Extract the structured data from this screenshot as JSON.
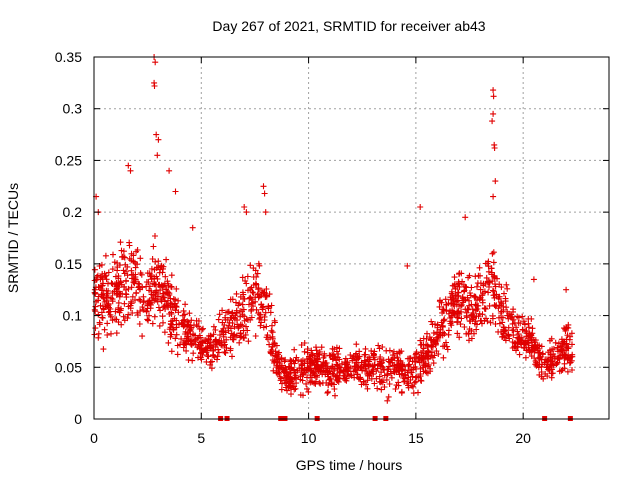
{
  "chart_data": {
    "type": "scatter",
    "title": "Day 267 of 2021, SRMTID for receiver ab43",
    "xlabel": "GPS time / hours",
    "ylabel": "SRMTID / TECUs",
    "xlim": [
      0,
      24
    ],
    "ylim": [
      0,
      0.35
    ],
    "xticks": [
      0,
      5,
      10,
      15,
      20
    ],
    "yticks": [
      0,
      0.05,
      0.1,
      0.15,
      0.2,
      0.25,
      0.3,
      0.35
    ],
    "xtick_labels": [
      "0",
      "5",
      "10",
      "15",
      "20"
    ],
    "ytick_labels": [
      "0",
      "0.05",
      "0.1",
      "0.15",
      "0.2",
      "0.25",
      "0.3",
      "0.35"
    ],
    "grid": true,
    "marker": "+",
    "color": "#e00000",
    "zero_markers_x": [
      5.9,
      6.2,
      8.7,
      8.8,
      8.9,
      10.4,
      13.1,
      13.6,
      21.0,
      22.2
    ],
    "series": [
      {
        "name": "SRMTID",
        "envelope_x": [
          0,
          0.5,
          1,
          1.5,
          2,
          2.5,
          3,
          3.5,
          4,
          4.5,
          5,
          5.5,
          6,
          6.5,
          7,
          7.5,
          8,
          8.5,
          9,
          9.5,
          10,
          10.5,
          11,
          11.5,
          12,
          12.5,
          13,
          13.5,
          14,
          14.5,
          15,
          15.5,
          16,
          16.5,
          17,
          17.5,
          18,
          18.5,
          19,
          19.5,
          20,
          20.5,
          21,
          21.5,
          22,
          22.3
        ],
        "envelope_mean": [
          0.11,
          0.12,
          0.12,
          0.14,
          0.13,
          0.12,
          0.13,
          0.11,
          0.09,
          0.08,
          0.075,
          0.07,
          0.08,
          0.09,
          0.11,
          0.12,
          0.11,
          0.06,
          0.04,
          0.045,
          0.05,
          0.05,
          0.045,
          0.05,
          0.05,
          0.05,
          0.05,
          0.05,
          0.05,
          0.045,
          0.05,
          0.06,
          0.08,
          0.1,
          0.12,
          0.11,
          0.11,
          0.13,
          0.1,
          0.09,
          0.08,
          0.07,
          0.05,
          0.06,
          0.07,
          0.06
        ],
        "envelope_spread": [
          0.05,
          0.05,
          0.05,
          0.06,
          0.05,
          0.05,
          0.05,
          0.05,
          0.035,
          0.03,
          0.025,
          0.025,
          0.03,
          0.035,
          0.045,
          0.045,
          0.045,
          0.03,
          0.02,
          0.025,
          0.03,
          0.025,
          0.025,
          0.025,
          0.025,
          0.025,
          0.025,
          0.03,
          0.025,
          0.025,
          0.03,
          0.03,
          0.035,
          0.04,
          0.045,
          0.045,
          0.04,
          0.05,
          0.035,
          0.03,
          0.03,
          0.025,
          0.025,
          0.025,
          0.03,
          0.025
        ],
        "peaks": [
          {
            "x": 0.1,
            "y": 0.215
          },
          {
            "x": 0.2,
            "y": 0.2
          },
          {
            "x": 1.6,
            "y": 0.245
          },
          {
            "x": 1.7,
            "y": 0.24
          },
          {
            "x": 2.8,
            "y": 0.35
          },
          {
            "x": 2.85,
            "y": 0.345
          },
          {
            "x": 2.8,
            "y": 0.325
          },
          {
            "x": 2.82,
            "y": 0.322
          },
          {
            "x": 2.9,
            "y": 0.275
          },
          {
            "x": 3.0,
            "y": 0.27
          },
          {
            "x": 2.95,
            "y": 0.255
          },
          {
            "x": 3.5,
            "y": 0.24
          },
          {
            "x": 3.8,
            "y": 0.22
          },
          {
            "x": 4.6,
            "y": 0.185
          },
          {
            "x": 7.0,
            "y": 0.205
          },
          {
            "x": 7.1,
            "y": 0.2
          },
          {
            "x": 7.9,
            "y": 0.225
          },
          {
            "x": 7.95,
            "y": 0.218
          },
          {
            "x": 8.0,
            "y": 0.2
          },
          {
            "x": 15.2,
            "y": 0.205
          },
          {
            "x": 14.6,
            "y": 0.148
          },
          {
            "x": 17.3,
            "y": 0.195
          },
          {
            "x": 18.6,
            "y": 0.318
          },
          {
            "x": 18.62,
            "y": 0.312
          },
          {
            "x": 18.6,
            "y": 0.295
          },
          {
            "x": 18.55,
            "y": 0.288
          },
          {
            "x": 18.65,
            "y": 0.265
          },
          {
            "x": 18.67,
            "y": 0.262
          },
          {
            "x": 18.7,
            "y": 0.23
          },
          {
            "x": 18.6,
            "y": 0.215
          },
          {
            "x": 20.5,
            "y": 0.135
          },
          {
            "x": 22.0,
            "y": 0.125
          }
        ]
      }
    ]
  }
}
